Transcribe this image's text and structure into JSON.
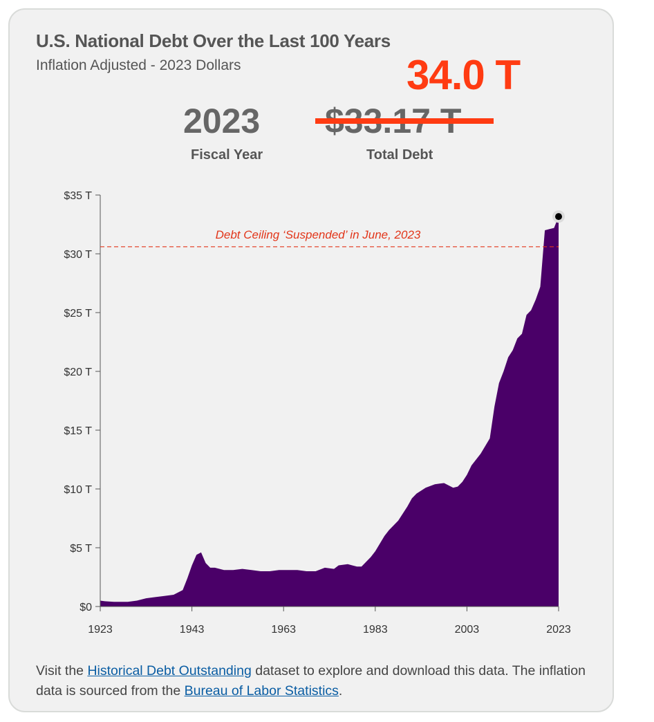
{
  "header": {
    "title": "U.S. National Debt Over the Last 100 Years",
    "subtitle": "Inflation Adjusted - 2023 Dollars",
    "overlay_value": "34.0 T"
  },
  "stats": {
    "year_value": "2023",
    "year_label": "Fiscal Year",
    "debt_value": "$33.17 T",
    "debt_label": "Total Debt"
  },
  "colors": {
    "area": "#4a0068",
    "annotation": "#e2361a",
    "overlay": "#ff3b12"
  },
  "chart_data": {
    "type": "area",
    "title": "U.S. National Debt Over the Last 100 Years",
    "subtitle": "Inflation Adjusted - 2023 Dollars",
    "xlabel": "",
    "ylabel": "",
    "xlim": [
      1923,
      2023
    ],
    "ylim": [
      0,
      35
    ],
    "x_ticks": [
      "1923",
      "1943",
      "1963",
      "1983",
      "2003",
      "2023"
    ],
    "y_ticks": [
      "$0",
      "$5 T",
      "$10 T",
      "$15 T",
      "$20 T",
      "$25 T",
      "$30 T",
      "$35 T"
    ],
    "y_tick_values": [
      0,
      5,
      10,
      15,
      20,
      25,
      30,
      35
    ],
    "reference_line": {
      "y": 30.6,
      "label": "Debt Ceiling ‘Suspended’ in June, 2023"
    },
    "highlight_point": {
      "x": 2023,
      "y": 33.17
    },
    "series": [
      {
        "x": [
          1923,
          1924,
          1926,
          1929,
          1931,
          1933,
          1935,
          1937,
          1939,
          1941,
          1942,
          1943,
          1944,
          1945,
          1946,
          1947,
          1948,
          1950,
          1952,
          1954,
          1956,
          1958,
          1960,
          1962,
          1964,
          1966,
          1968,
          1970,
          1972,
          1974,
          1975,
          1977,
          1979,
          1980,
          1982,
          1983,
          1985,
          1986,
          1988,
          1990,
          1991,
          1992,
          1994,
          1996,
          1998,
          2000,
          2001,
          2002,
          2003,
          2004,
          2006,
          2008,
          2009,
          2010,
          2011,
          2012,
          2013,
          2014,
          2015,
          2016,
          2017,
          2018,
          2019,
          2020,
          2021,
          2022,
          2023
        ],
        "y": [
          0.5,
          0.45,
          0.4,
          0.4,
          0.5,
          0.7,
          0.8,
          0.9,
          1.0,
          1.4,
          2.4,
          3.5,
          4.4,
          4.6,
          3.7,
          3.3,
          3.3,
          3.1,
          3.1,
          3.2,
          3.1,
          3.0,
          3.0,
          3.1,
          3.1,
          3.1,
          3.0,
          3.0,
          3.3,
          3.2,
          3.5,
          3.6,
          3.4,
          3.4,
          4.2,
          4.7,
          6.0,
          6.5,
          7.3,
          8.5,
          9.2,
          9.6,
          10.1,
          10.4,
          10.5,
          10.1,
          10.2,
          10.6,
          11.2,
          12.0,
          13.0,
          14.3,
          17.0,
          19.0,
          20.0,
          21.2,
          21.8,
          22.8,
          23.2,
          24.8,
          25.2,
          26.1,
          27.2,
          32.0,
          32.1,
          32.2,
          33.17
        ]
      }
    ]
  },
  "footer": {
    "text1": "Visit the ",
    "link1": "Historical Debt Outstanding",
    "text2": " dataset to explore and download this data. The inflation data is sourced from the ",
    "link2": "Bureau of Labor Statistics",
    "text3": "."
  }
}
